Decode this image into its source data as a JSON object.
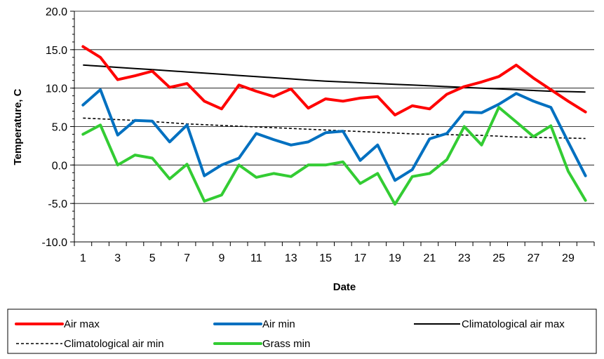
{
  "chart_data": {
    "type": "line",
    "xlabel": "Date",
    "ylabel": "Temperature, C",
    "ylim": [
      -10,
      20
    ],
    "ytick_step": 5,
    "y_tick_labels": [
      "-10.0",
      "-5.0",
      "0.0",
      "5.0",
      "10.0",
      "15.0",
      "20.0"
    ],
    "x": [
      1,
      2,
      3,
      4,
      5,
      6,
      7,
      8,
      9,
      10,
      11,
      12,
      13,
      14,
      15,
      16,
      17,
      18,
      19,
      20,
      21,
      22,
      23,
      24,
      25,
      26,
      27,
      28,
      29,
      30
    ],
    "x_tick_labels": [
      "1",
      "3",
      "5",
      "7",
      "9",
      "11",
      "13",
      "15",
      "17",
      "19",
      "21",
      "23",
      "25",
      "27",
      "29"
    ],
    "grid": "horizontal major gridlines",
    "legend_position": "bottom",
    "series": [
      {
        "name": "Air max",
        "color": "#ff0000",
        "style": "solid-thick",
        "values": [
          15.4,
          14.0,
          11.1,
          11.6,
          12.2,
          10.1,
          10.6,
          8.3,
          7.3,
          10.4,
          9.6,
          8.9,
          9.9,
          7.4,
          8.6,
          8.3,
          8.7,
          8.9,
          6.5,
          7.7,
          7.3,
          9.2,
          10.2,
          10.8,
          11.5,
          13.0,
          11.3,
          9.8,
          8.3,
          6.9
        ]
      },
      {
        "name": "Air min",
        "color": "#0070c0",
        "style": "solid-thick",
        "values": [
          7.8,
          9.8,
          3.9,
          5.8,
          5.7,
          3.0,
          5.2,
          -1.4,
          0.0,
          0.9,
          4.1,
          3.3,
          2.6,
          3.0,
          4.2,
          4.4,
          0.6,
          2.6,
          -2.0,
          -0.6,
          3.4,
          4.1,
          6.9,
          6.8,
          7.9,
          9.3,
          8.3,
          7.5,
          3.0,
          -1.4
        ]
      },
      {
        "name": "Climatological air max",
        "color": "#000000",
        "style": "solid-thin",
        "values": [
          13.0,
          12.85,
          12.7,
          12.55,
          12.4,
          12.25,
          12.1,
          11.95,
          11.8,
          11.65,
          11.5,
          11.35,
          11.2,
          11.05,
          10.9,
          10.8,
          10.7,
          10.6,
          10.5,
          10.4,
          10.3,
          10.2,
          10.1,
          10.0,
          9.9,
          9.8,
          9.7,
          9.6,
          9.55,
          9.5
        ]
      },
      {
        "name": "Climatological air min",
        "color": "#000000",
        "style": "dashed",
        "values": [
          6.1,
          6.0,
          5.9,
          5.8,
          5.65,
          5.5,
          5.35,
          5.25,
          5.15,
          5.05,
          4.95,
          4.85,
          4.75,
          4.65,
          4.55,
          4.45,
          4.35,
          4.25,
          4.15,
          4.05,
          4.0,
          3.95,
          3.9,
          3.85,
          3.75,
          3.65,
          3.6,
          3.55,
          3.5,
          3.45
        ]
      },
      {
        "name": "Grass min",
        "color": "#33cc33",
        "style": "solid-thick",
        "values": [
          4.0,
          5.2,
          0.0,
          1.3,
          0.9,
          -1.8,
          0.1,
          -4.7,
          -3.9,
          0.0,
          -1.6,
          -1.1,
          -1.5,
          0.0,
          0.0,
          0.4,
          -2.4,
          -1.1,
          -5.1,
          -1.5,
          -1.1,
          0.7,
          5.0,
          2.6,
          7.5,
          5.6,
          3.7,
          5.1,
          -0.8,
          -4.6
        ]
      }
    ],
    "legend_rows": [
      [
        "Air max",
        "Air min",
        "Climatological air max"
      ],
      [
        "Climatological air min",
        "Grass min"
      ]
    ]
  }
}
